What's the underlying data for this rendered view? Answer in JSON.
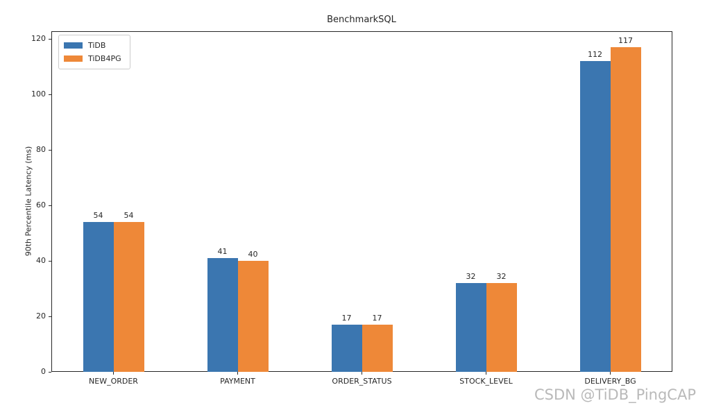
{
  "title": "BenchmarkSQL",
  "watermark": "CSDN @TiDB_PingCAP",
  "colors": {
    "tidb_blue": "#3b76b0",
    "tidb4pg_orange": "#ee8838",
    "spine": "#262626",
    "legend_border": "#cccccc",
    "watermark_gray": "#b9b9b9",
    "background": "#ffffff"
  },
  "chart_data": {
    "type": "bar",
    "title": "BenchmarkSQL",
    "categories": [
      "NEW_ORDER",
      "PAYMENT",
      "ORDER_STATUS",
      "STOCK_LEVEL",
      "DELIVERY_BG"
    ],
    "series": [
      {
        "name": "TiDB",
        "color": "#3b76b0",
        "values": [
          54,
          41,
          17,
          32,
          112
        ]
      },
      {
        "name": "TiDB4PG",
        "color": "#ee8838",
        "values": [
          54,
          40,
          17,
          32,
          117
        ]
      }
    ],
    "xlabel": "",
    "ylabel": "90th Percentile Latency (ms)",
    "yticks": [
      0,
      20,
      40,
      60,
      80,
      100,
      120
    ],
    "ylim": [
      0,
      122.85
    ],
    "grid": false,
    "legend_position": "upper left",
    "bar_value_labels": true
  }
}
